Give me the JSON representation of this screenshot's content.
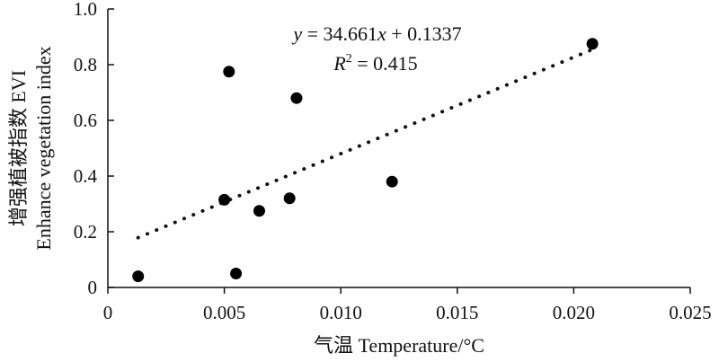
{
  "chart_data": {
    "type": "scatter",
    "xlabel": "气温 Temperature/°C",
    "ylabel": [
      "增强植被指数 EVI",
      "Enhance vegetation index"
    ],
    "xlim": [
      0,
      0.025
    ],
    "ylim": [
      0,
      1.0
    ],
    "x_ticks": [
      0,
      0.005,
      0.01,
      0.015,
      0.02,
      0.025
    ],
    "x_tick_labels": [
      "0",
      "0.005",
      "0.010",
      "0.015",
      "0.020",
      "0.025"
    ],
    "y_ticks": [
      0,
      0.2,
      0.4,
      0.6,
      0.8,
      1.0
    ],
    "y_tick_labels": [
      "0",
      "0.2",
      "0.4",
      "0.6",
      "0.8",
      "1.0"
    ],
    "grid": false,
    "points": [
      {
        "x": 0.0013,
        "y": 0.04
      },
      {
        "x": 0.005,
        "y": 0.315
      },
      {
        "x": 0.0052,
        "y": 0.775
      },
      {
        "x": 0.0055,
        "y": 0.05
      },
      {
        "x": 0.0065,
        "y": 0.275
      },
      {
        "x": 0.0078,
        "y": 0.32
      },
      {
        "x": 0.0081,
        "y": 0.68
      },
      {
        "x": 0.0122,
        "y": 0.38
      },
      {
        "x": 0.0208,
        "y": 0.875
      }
    ],
    "trendline": {
      "style": "dotted",
      "slope": 34.661,
      "intercept": 0.1337,
      "x_range": [
        0.0013,
        0.0208
      ]
    },
    "equation": {
      "y_var": "y",
      "eq_rest": " = 34.661",
      "x_var": "x",
      "eq_tail": " + 0.1337"
    },
    "r2": {
      "r_var": "R",
      "sup": "2",
      "rest": " = 0.415"
    }
  }
}
